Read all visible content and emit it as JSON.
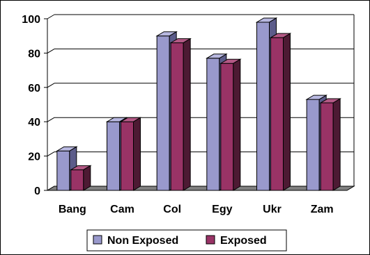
{
  "chart_data": {
    "type": "bar",
    "categories": [
      "Bang",
      "Cam",
      "Col",
      "Egy",
      "Ukr",
      "Zam"
    ],
    "series": [
      {
        "name": "Non Exposed",
        "values": [
          23,
          40,
          90,
          77,
          98,
          53
        ],
        "color": "#9999cc",
        "side_color": "#5c5c8a",
        "top_color": "#b8b8e0"
      },
      {
        "name": "Exposed",
        "values": [
          12,
          40,
          86,
          74,
          89,
          51
        ],
        "color": "#993366",
        "side_color": "#4d1a33",
        "top_color": "#b35985"
      }
    ],
    "ylim": [
      0,
      100
    ],
    "yticks": [
      0,
      20,
      40,
      60,
      80,
      100
    ],
    "grid": true,
    "legend_position": "bottom",
    "bar_style": "3d"
  }
}
